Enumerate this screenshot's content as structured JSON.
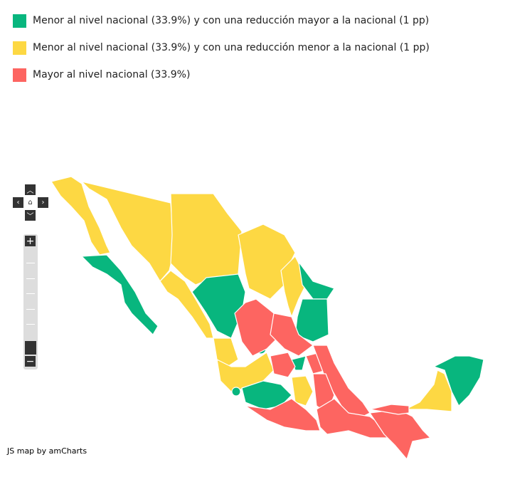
{
  "legend": {
    "items": [
      {
        "label": "Menor al nivel nacional (33.9%) y con una reducción mayor a la nacional (1 pp)",
        "color": "#08b67e"
      },
      {
        "label": "Menor al nivel nacional (33.9%) y con una reducción menor a la nacional (1 pp)",
        "color": "#fdd843"
      },
      {
        "label": "Mayor al nivel nacional (33.9%)",
        "color": "#fd6561"
      }
    ]
  },
  "controls": {
    "up_icon": "chevron-up-icon",
    "down_icon": "chevron-down-icon",
    "left_icon": "chevron-left-icon",
    "right_icon": "chevron-right-icon",
    "home_icon": "home-icon",
    "zoom_in": "+",
    "zoom_out": "−",
    "zoom_level": 0
  },
  "credit": "JS map by amCharts"
}
